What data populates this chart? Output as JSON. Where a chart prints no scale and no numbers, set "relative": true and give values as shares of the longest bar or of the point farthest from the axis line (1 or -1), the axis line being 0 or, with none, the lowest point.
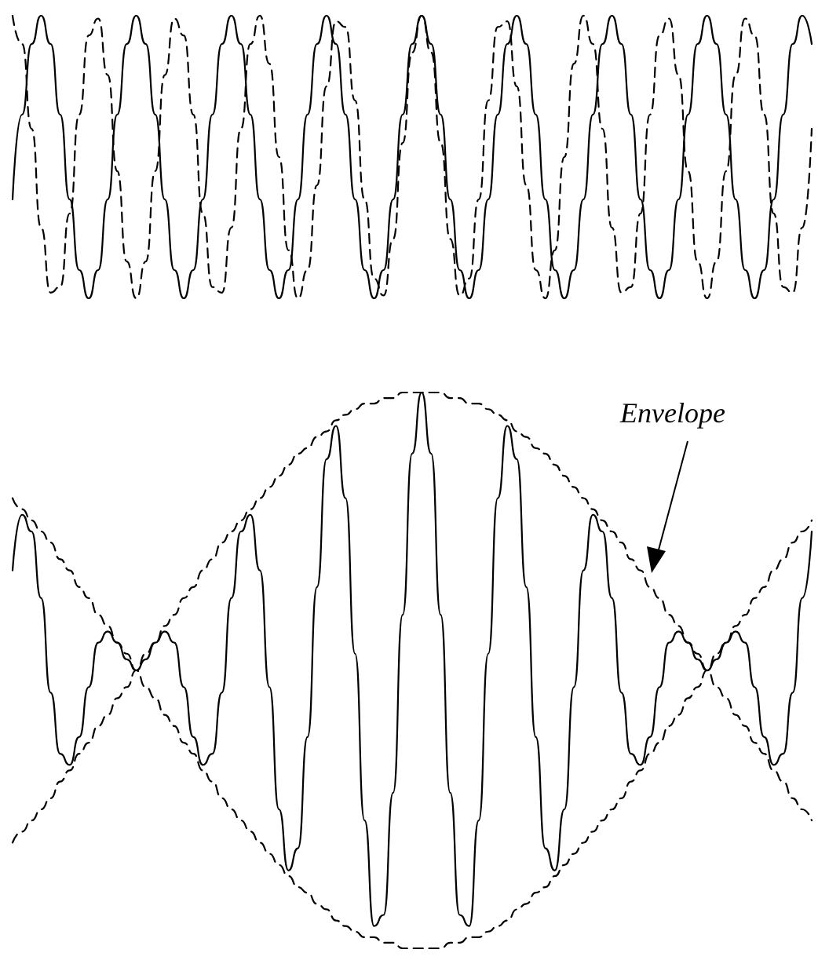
{
  "chart_data": [
    {
      "type": "line",
      "relative": true,
      "categories": [
        null,
        null,
        null,
        null,
        null,
        null,
        null,
        null,
        null,
        null,
        null,
        null,
        null,
        null,
        null,
        null,
        null,
        null,
        null,
        null,
        null,
        null,
        null,
        null,
        null,
        null,
        null,
        null,
        null,
        null,
        null,
        null,
        null,
        null,
        null,
        null,
        null,
        null,
        null,
        null,
        null,
        null,
        null,
        null,
        null,
        null,
        null,
        null,
        null,
        null,
        null,
        null,
        null,
        null,
        null,
        null,
        null,
        null,
        null,
        null,
        null,
        null,
        null,
        null,
        null,
        null,
        null,
        null,
        null,
        null,
        null,
        null,
        null,
        null,
        null,
        null,
        null,
        null,
        null,
        null,
        null,
        null,
        null,
        null,
        null
      ],
      "series": [
        {
          "color": "#000000",
          "line_style": "solid",
          "values": [
            0.35,
            0.65,
            0.9,
            1,
            0.9,
            0.65,
            0.35,
            0.1,
            0,
            0.1,
            0.35,
            0.65,
            0.9,
            1,
            0.9,
            0.65,
            0.35,
            0.1,
            0,
            0.1,
            0.35,
            0.65,
            0.9,
            1,
            0.9,
            0.65,
            0.35,
            0.1,
            0,
            0.1,
            0.35,
            0.65,
            0.9,
            1,
            0.9,
            0.65,
            0.35,
            0.1,
            0,
            0.1,
            0.35,
            0.65,
            0.9,
            1,
            0.9,
            0.65,
            0.35,
            0.1,
            0,
            0.1,
            0.35,
            0.65,
            0.9,
            1,
            0.9,
            0.65,
            0.35,
            0.1,
            0,
            0.1,
            0.35,
            0.65,
            0.9,
            1,
            0.9,
            0.65,
            0.35,
            0.1,
            0,
            0.1,
            0.35,
            0.65,
            0.9,
            1,
            0.9,
            0.65,
            0.35,
            0.1,
            0,
            0.1,
            0.35,
            0.65,
            0.9,
            1,
            0.9
          ]
        },
        {
          "color": "#000000",
          "line_style": "dashed",
          "values": [
            1,
            0.9,
            0.6,
            0.25,
            0.02,
            0.04,
            0.3,
            0.65,
            0.93,
            0.99,
            0.79,
            0.45,
            0.13,
            0,
            0.13,
            0.45,
            0.79,
            0.99,
            0.93,
            0.65,
            0.3,
            0.04,
            0.02,
            0.25,
            0.6,
            0.9,
            1,
            0.83,
            0.5,
            0.17,
            0,
            0.1,
            0.4,
            0.75,
            0.98,
            0.96,
            0.7,
            0.35,
            0.07,
            0.01,
            0.21,
            0.55,
            0.87,
            1,
            0.87,
            0.55,
            0.21,
            0.01,
            0.07,
            0.35,
            0.7,
            0.96,
            0.98,
            0.75,
            0.4,
            0.1,
            0,
            0.17,
            0.5,
            0.83,
            1,
            0.9,
            0.6,
            0.25,
            0.02,
            0.04,
            0.3,
            0.65,
            0.93,
            0.99,
            0.79,
            0.45,
            0.13,
            0,
            0.13,
            0.45,
            0.79,
            0.99,
            0.93,
            0.65,
            0.3,
            0.04,
            0.02,
            0.25,
            0.6
          ]
        }
      ]
    },
    {
      "type": "line",
      "relative": true,
      "categories": [
        null,
        null,
        null,
        null,
        null,
        null,
        null,
        null,
        null,
        null,
        null,
        null,
        null,
        null,
        null,
        null,
        null,
        null,
        null,
        null,
        null,
        null,
        null,
        null,
        null,
        null,
        null,
        null,
        null,
        null,
        null,
        null,
        null,
        null,
        null,
        null,
        null,
        null,
        null,
        null,
        null,
        null,
        null,
        null,
        null,
        null,
        null,
        null,
        null,
        null,
        null,
        null,
        null,
        null,
        null,
        null,
        null,
        null,
        null,
        null,
        null,
        null,
        null,
        null,
        null,
        null,
        null,
        null,
        null,
        null,
        null,
        null,
        null,
        null,
        null,
        null,
        null,
        null,
        null,
        null,
        null,
        null,
        null,
        null,
        null
      ],
      "annotations": [
        "Envelope"
      ],
      "series": [
        {
          "color": "#000000",
          "line_style": "solid",
          "values": [
            0.68,
            0.78,
            0.75,
            0.63,
            0.46,
            0.35,
            0.33,
            0.38,
            0.47,
            0.55,
            0.57,
            0.55,
            0.52,
            0.5,
            0.52,
            0.55,
            0.57,
            0.55,
            0.47,
            0.38,
            0.33,
            0.35,
            0.46,
            0.63,
            0.75,
            0.78,
            0.68,
            0.47,
            0.25,
            0.14,
            0.18,
            0.38,
            0.65,
            0.88,
            0.94,
            0.81,
            0.53,
            0.23,
            0.04,
            0.06,
            0.28,
            0.6,
            0.89,
            1,
            0.89,
            0.6,
            0.28,
            0.06,
            0.04,
            0.23,
            0.53,
            0.81,
            0.94,
            0.88,
            0.65,
            0.38,
            0.18,
            0.14,
            0.25,
            0.47,
            0.68,
            0.78,
            0.75,
            0.63,
            0.46,
            0.35,
            0.33,
            0.38,
            0.47,
            0.55,
            0.57,
            0.55,
            0.52,
            0.5,
            0.52,
            0.55,
            0.57,
            0.55,
            0.47,
            0.38,
            0.33,
            0.35,
            0.46,
            0.63,
            0.75
          ]
        },
        {
          "color": "#000000",
          "line_style": "dashed",
          "values": [
            0.19,
            0.21,
            0.23,
            0.25,
            0.27,
            0.3,
            0.32,
            0.35,
            0.37,
            0.4,
            0.42,
            0.45,
            0.47,
            0.5,
            0.53,
            0.55,
            0.58,
            0.6,
            0.63,
            0.65,
            0.68,
            0.7,
            0.73,
            0.75,
            0.77,
            0.79,
            0.81,
            0.83,
            0.85,
            0.87,
            0.89,
            0.9,
            0.92,
            0.93,
            0.95,
            0.96,
            0.97,
            0.98,
            0.98,
            0.99,
            0.99,
            1,
            1,
            1,
            1,
            1,
            0.99,
            0.99,
            0.98,
            0.98,
            0.97,
            0.96,
            0.95,
            0.93,
            0.92,
            0.9,
            0.89,
            0.87,
            0.85,
            0.83,
            0.81,
            0.79,
            0.77,
            0.75,
            0.73,
            0.7,
            0.68,
            0.65,
            0.63,
            0.6,
            0.58,
            0.55,
            0.53,
            0.5,
            0.47,
            0.45,
            0.42,
            0.4,
            0.37,
            0.35,
            0.32,
            0.3,
            0.27,
            0.25,
            0.23
          ]
        },
        {
          "color": "#000000",
          "line_style": "dashed",
          "values": [
            0.81,
            0.79,
            0.77,
            0.75,
            0.73,
            0.7,
            0.68,
            0.65,
            0.63,
            0.6,
            0.58,
            0.55,
            0.53,
            0.5,
            0.47,
            0.45,
            0.42,
            0.4,
            0.37,
            0.35,
            0.32,
            0.3,
            0.27,
            0.25,
            0.23,
            0.21,
            0.19,
            0.17,
            0.15,
            0.13,
            0.11,
            0.1,
            0.08,
            0.07,
            0.05,
            0.04,
            0.03,
            0.02,
            0.02,
            0.01,
            0.01,
            0,
            0,
            0,
            0,
            0,
            0.01,
            0.01,
            0.02,
            0.02,
            0.03,
            0.04,
            0.05,
            0.07,
            0.08,
            0.1,
            0.11,
            0.13,
            0.15,
            0.17,
            0.19,
            0.21,
            0.23,
            0.25,
            0.27,
            0.3,
            0.32,
            0.35,
            0.37,
            0.4,
            0.42,
            0.45,
            0.47,
            0.5,
            0.53,
            0.55,
            0.58,
            0.6,
            0.63,
            0.65,
            0.68,
            0.7,
            0.73,
            0.75,
            0.77
          ]
        }
      ]
    }
  ]
}
